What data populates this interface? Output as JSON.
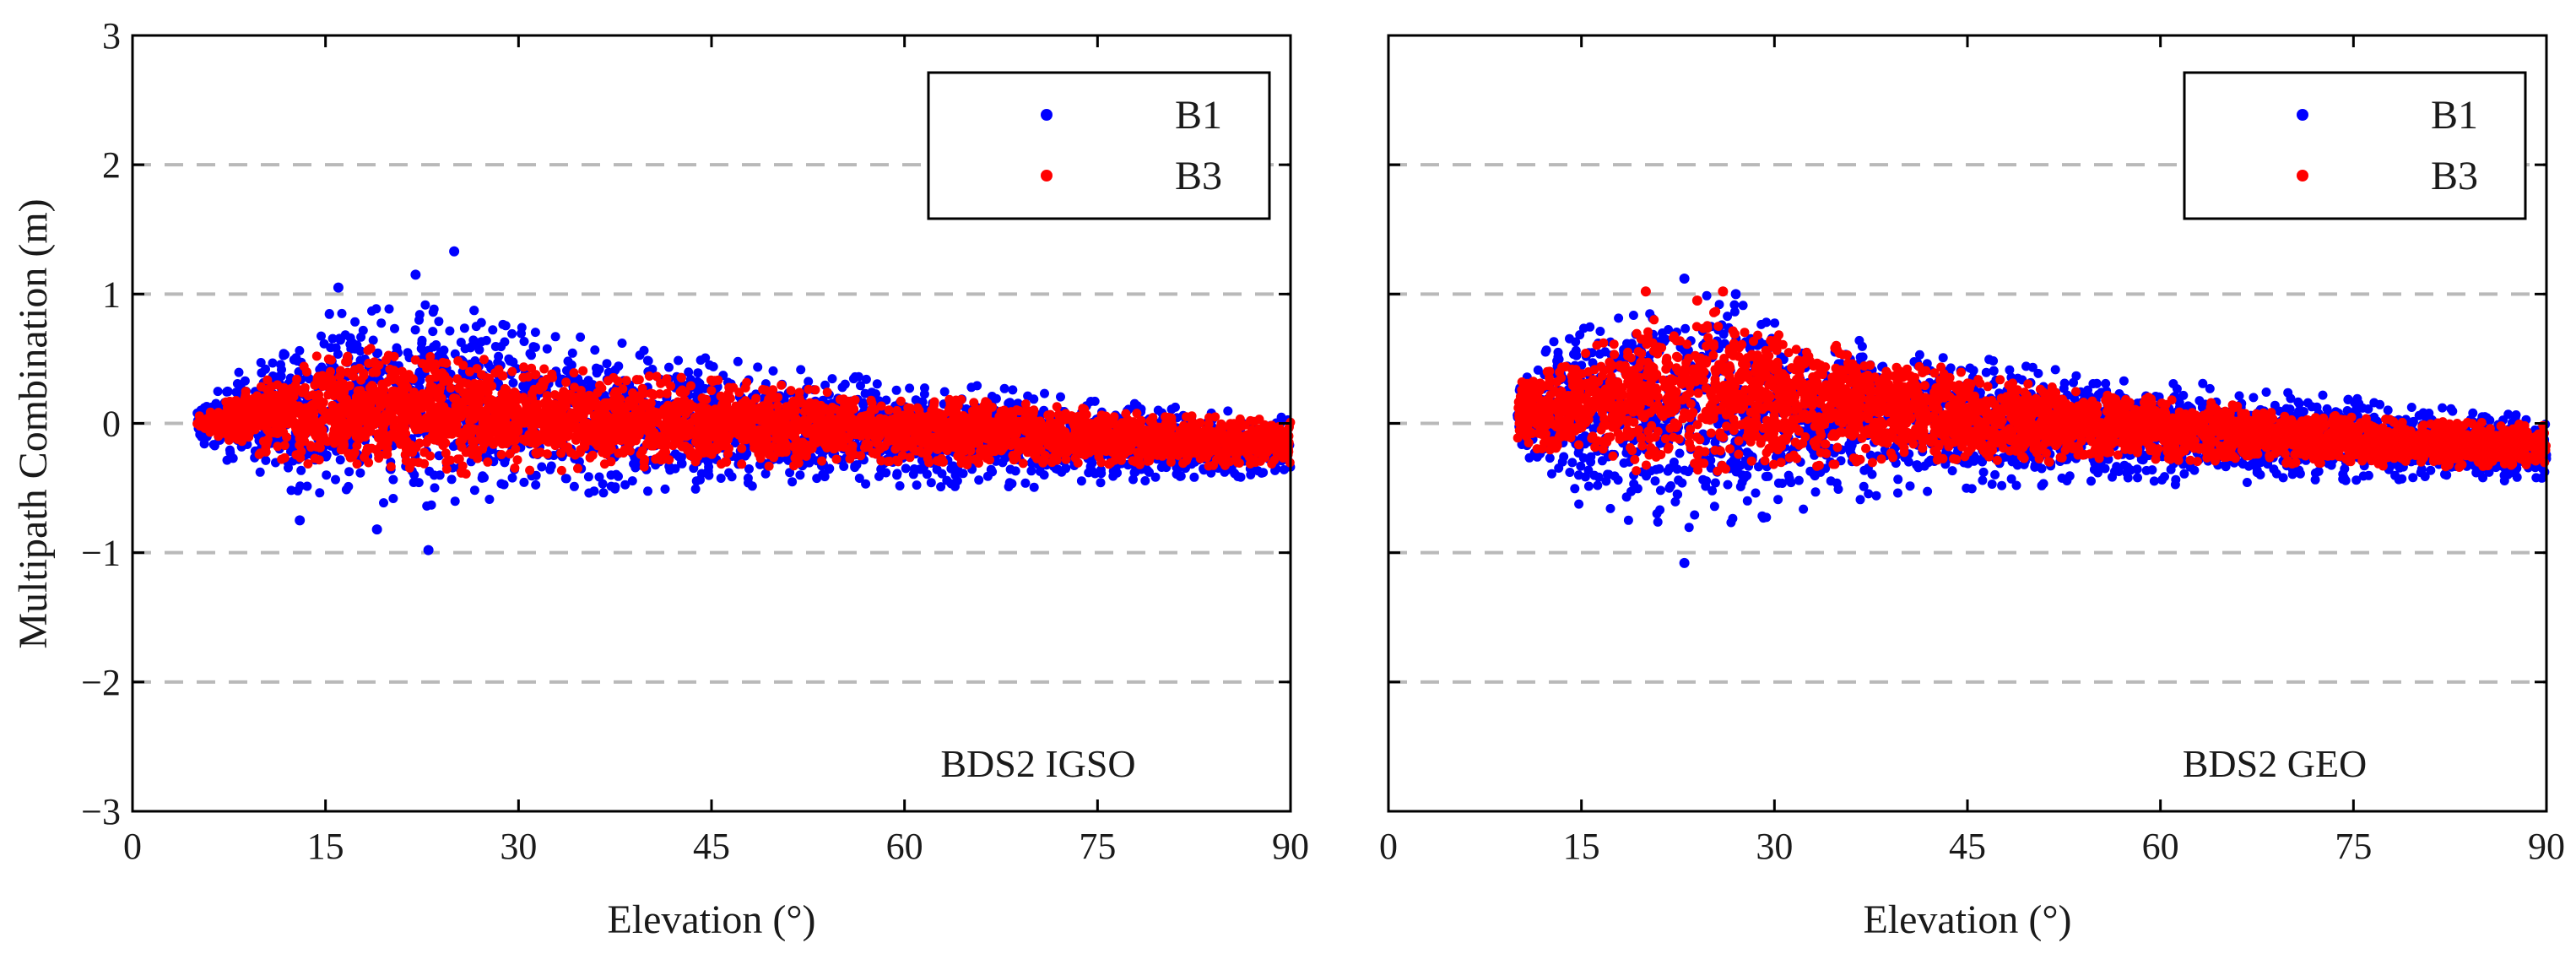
{
  "colors": {
    "B1": "#0000ff",
    "B3": "#ff0000",
    "grid": "#b9b9b9",
    "axis": "#000000"
  },
  "chart_data": [
    {
      "type": "scatter",
      "title": "",
      "panel_label": "BDS2 IGSO",
      "xlabel": "Elevation (°)",
      "ylabel": "Multipath Combination (m)",
      "xlim": [
        0,
        90
      ],
      "ylim": [
        -3,
        3
      ],
      "xticks": [
        0,
        15,
        30,
        45,
        60,
        75,
        90
      ],
      "yticks": [
        -3,
        -2,
        -1,
        0,
        1,
        2,
        3
      ],
      "ytick_labels": [
        "−3",
        "−2",
        "−1",
        "0",
        "1",
        "2",
        "3"
      ],
      "grid": "dashed horizontal at y = -2, -1, 0, 1, 2",
      "legend": {
        "position": "top-right",
        "entries": [
          "B1",
          "B3"
        ]
      },
      "series": [
        {
          "name": "B1",
          "color": "#0000ff",
          "envelope": {
            "elevation": [
              5,
              10,
              15,
              20,
              25,
              30,
              40,
              50,
              60,
              70,
              80,
              90
            ],
            "upper": [
              0.15,
              0.55,
              0.85,
              0.95,
              0.95,
              0.8,
              0.6,
              0.45,
              0.35,
              0.25,
              0.15,
              0.05
            ],
            "lower": [
              -0.15,
              -0.45,
              -0.6,
              -0.65,
              -0.65,
              -0.6,
              -0.55,
              -0.5,
              -0.5,
              -0.5,
              -0.45,
              -0.4
            ]
          },
          "outliers": [
            [
              22,
              1.15
            ],
            [
              25,
              1.33
            ],
            [
              23,
              -0.98
            ],
            [
              19,
              -0.82
            ],
            [
              13,
              -0.75
            ],
            [
              16,
              1.05
            ]
          ]
        },
        {
          "name": "B3",
          "color": "#ff0000",
          "envelope": {
            "elevation": [
              5,
              10,
              15,
              20,
              25,
              30,
              40,
              50,
              60,
              70,
              80,
              90
            ],
            "upper": [
              0.05,
              0.35,
              0.55,
              0.6,
              0.55,
              0.45,
              0.38,
              0.3,
              0.22,
              0.15,
              0.08,
              0.02
            ],
            "lower": [
              -0.05,
              -0.25,
              -0.35,
              -0.4,
              -0.4,
              -0.38,
              -0.35,
              -0.33,
              -0.32,
              -0.32,
              -0.33,
              -0.33
            ]
          },
          "outliers": []
        }
      ]
    },
    {
      "type": "scatter",
      "title": "",
      "panel_label": "BDS2 GEO",
      "xlabel": "Elevation (°)",
      "ylabel": "",
      "xlim": [
        0,
        90
      ],
      "ylim": [
        -3,
        3
      ],
      "xticks": [
        0,
        15,
        30,
        45,
        60,
        75,
        90
      ],
      "yticks": [
        -3,
        -2,
        -1,
        0,
        1,
        2,
        3
      ],
      "ytick_labels": [
        "",
        "",
        "",
        "",
        "",
        "",
        ""
      ],
      "grid": "dashed horizontal at y = -2, -1, 0, 1, 2",
      "legend": {
        "position": "top-right",
        "entries": [
          "B1",
          "B3"
        ]
      },
      "series": [
        {
          "name": "B1",
          "color": "#0000ff",
          "envelope": {
            "elevation": [
              10,
              15,
              20,
              25,
              30,
              40,
              50,
              60,
              70,
              80,
              90
            ],
            "upper": [
              0.3,
              0.95,
              1.0,
              1.05,
              0.8,
              0.6,
              0.45,
              0.35,
              0.25,
              0.15,
              0.05
            ],
            "lower": [
              -0.2,
              -0.65,
              -0.8,
              -0.9,
              -0.75,
              -0.55,
              -0.5,
              -0.48,
              -0.45,
              -0.45,
              -0.45
            ]
          },
          "outliers": [
            [
              23,
              1.12
            ],
            [
              23,
              -1.08
            ],
            [
              27,
              1.0
            ]
          ]
        },
        {
          "name": "B3",
          "color": "#ff0000",
          "envelope": {
            "elevation": [
              10,
              15,
              20,
              25,
              30,
              40,
              50,
              60,
              70,
              80,
              90
            ],
            "upper": [
              0.3,
              0.6,
              0.8,
              0.9,
              0.7,
              0.5,
              0.3,
              0.2,
              0.1,
              0.02,
              0.0
            ],
            "lower": [
              -0.15,
              -0.3,
              -0.38,
              -0.38,
              -0.35,
              -0.3,
              -0.3,
              -0.3,
              -0.32,
              -0.34,
              -0.35
            ]
          },
          "outliers": [
            [
              20,
              1.02
            ],
            [
              24,
              0.95
            ],
            [
              26,
              1.02
            ]
          ]
        }
      ]
    }
  ]
}
